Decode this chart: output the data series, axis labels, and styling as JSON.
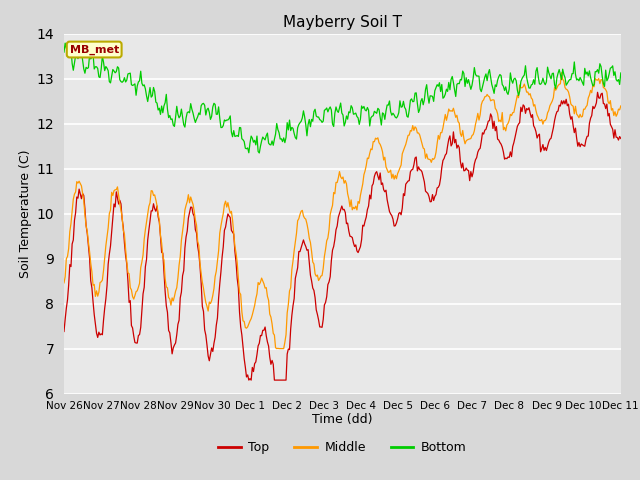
{
  "title": "Mayberry Soil T",
  "xlabel": "Time (dd)",
  "ylabel": "Soil Temperature (C)",
  "ylim": [
    6.0,
    14.0
  ],
  "yticks": [
    6.0,
    7.0,
    8.0,
    9.0,
    10.0,
    11.0,
    12.0,
    13.0,
    14.0
  ],
  "figure_bg": "#d8d8d8",
  "plot_bg": "#e8e8e8",
  "legend_label": "MB_met",
  "legend_box_facecolor": "#ffffcc",
  "legend_box_edgecolor": "#bbaa00",
  "line_colors": {
    "top": "#cc0000",
    "middle": "#ff9900",
    "bottom": "#00cc00"
  },
  "xtick_labels": [
    "Nov 26",
    "Nov 27",
    "Nov 28",
    "Nov 29",
    "Nov 30",
    "Dec 1",
    "Dec 2",
    "Dec 3",
    "Dec 4",
    "Dec 5",
    "Dec 6",
    "Dec 7",
    "Dec 8",
    "Dec 9",
    "Dec 10",
    "Dec 11"
  ],
  "grid_color": "#ffffff",
  "tick_fontsize": 7.5,
  "label_fontsize": 9,
  "title_fontsize": 11
}
